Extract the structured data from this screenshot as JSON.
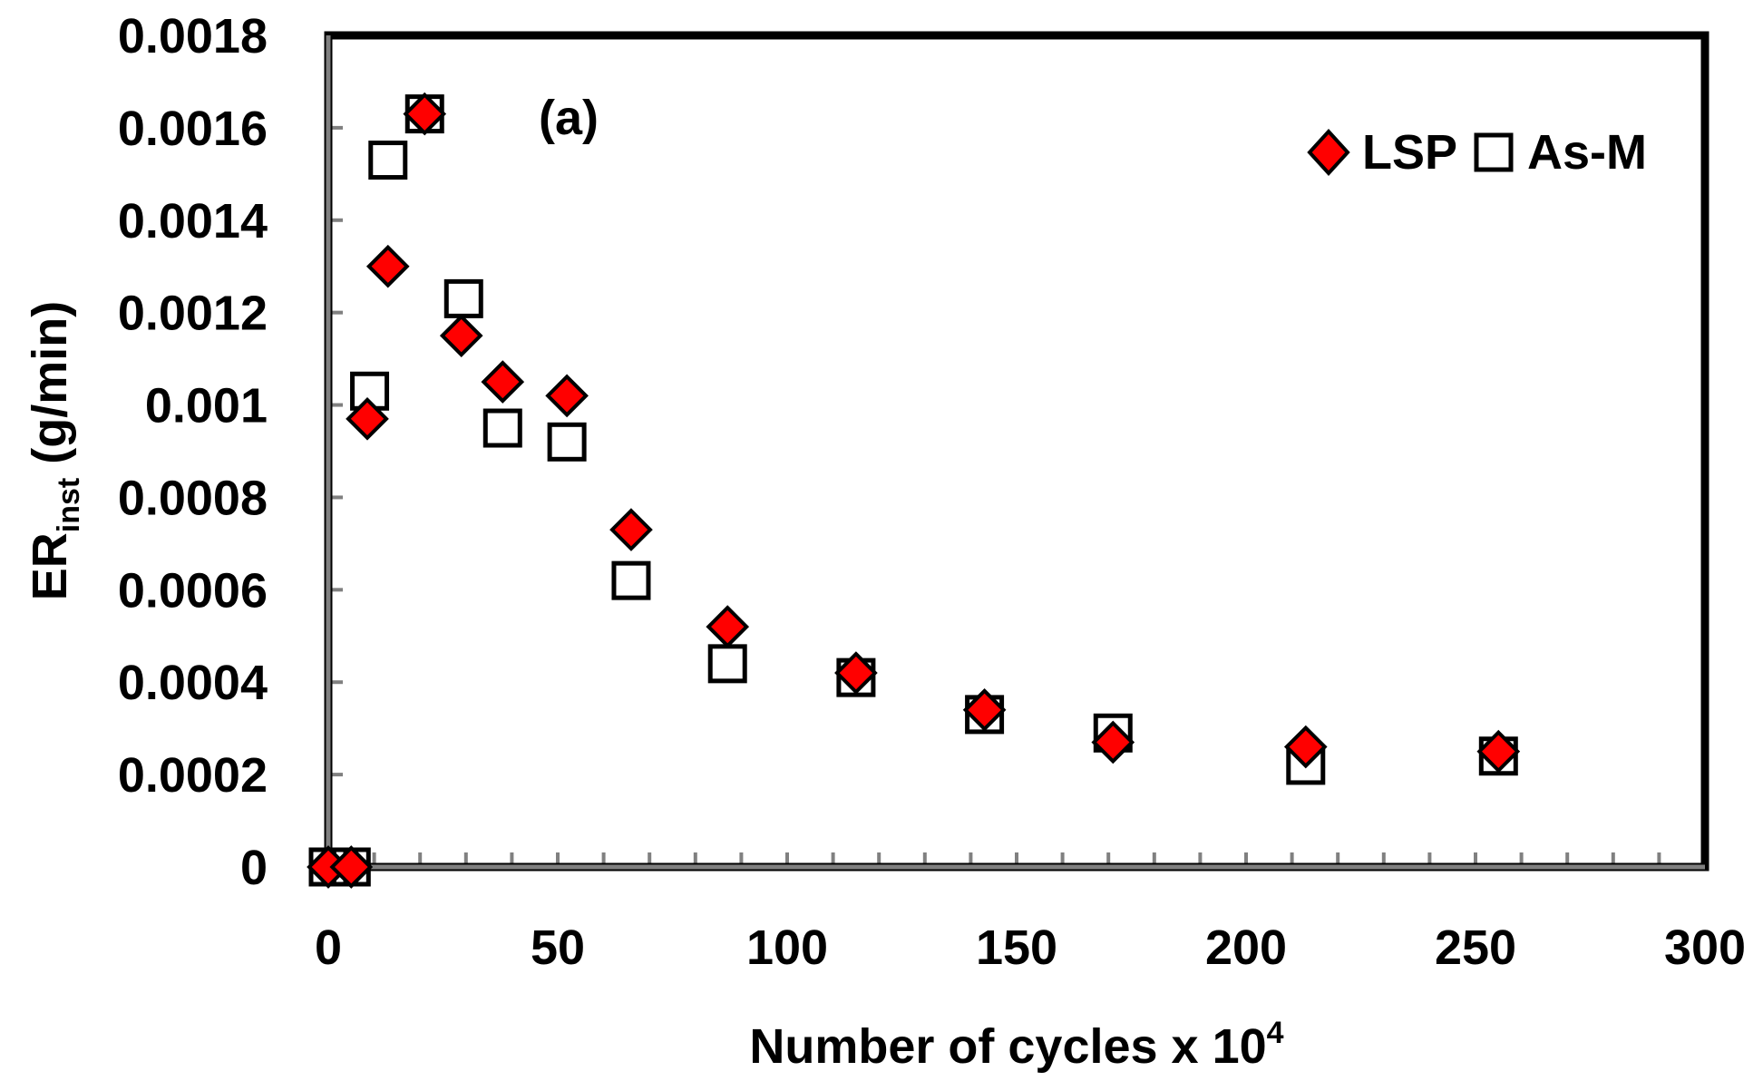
{
  "chart_data": {
    "type": "scatter",
    "panel_label": "(a)",
    "xlabel": "Number of cycles x 10",
    "xlabel_superscript": "4",
    "ylabel_main": "ER",
    "ylabel_subscript": "inst",
    "ylabel_unit": " (g/min)",
    "xlim": [
      0,
      300
    ],
    "ylim": [
      0,
      0.0018
    ],
    "x_ticks": [
      0,
      50,
      100,
      150,
      200,
      250,
      300
    ],
    "x_tick_labels": [
      "0",
      "50",
      "100",
      "150",
      "200",
      "250",
      "300"
    ],
    "x_minor_step": 10,
    "y_ticks": [
      0,
      0.0002,
      0.0004,
      0.0006,
      0.0008,
      0.001,
      0.0012,
      0.0014,
      0.0016,
      0.0018
    ],
    "y_tick_labels": [
      "0",
      "0.0002",
      "0.0004",
      "0.0006",
      "0.0008",
      "0.001",
      "0.0012",
      "0.0014",
      "0.0016",
      "0.0018"
    ],
    "grid": false,
    "legend_position": "top-right",
    "series": [
      {
        "name": "LSP",
        "marker": "diamond",
        "fill": "#ff0000",
        "stroke": "#000000",
        "points": [
          {
            "x": 0,
            "y": 0
          },
          {
            "x": 5,
            "y": 0
          },
          {
            "x": 8.5,
            "y": 0.00097
          },
          {
            "x": 13,
            "y": 0.0013
          },
          {
            "x": 21,
            "y": 0.00163
          },
          {
            "x": 29,
            "y": 0.00115
          },
          {
            "x": 38,
            "y": 0.00105
          },
          {
            "x": 52,
            "y": 0.00102
          },
          {
            "x": 66,
            "y": 0.00073
          },
          {
            "x": 87,
            "y": 0.00052
          },
          {
            "x": 115,
            "y": 0.00042
          },
          {
            "x": 143,
            "y": 0.00034
          },
          {
            "x": 171,
            "y": 0.00027
          },
          {
            "x": 213,
            "y": 0.00026
          },
          {
            "x": 255,
            "y": 0.00025
          }
        ]
      },
      {
        "name": "As-M",
        "marker": "square",
        "fill": "none",
        "stroke": "#000000",
        "points": [
          {
            "x": 0,
            "y": 0
          },
          {
            "x": 5,
            "y": 0
          },
          {
            "x": 9,
            "y": 0.00103
          },
          {
            "x": 13,
            "y": 0.00153
          },
          {
            "x": 21,
            "y": 0.00163
          },
          {
            "x": 29.5,
            "y": 0.00123
          },
          {
            "x": 38,
            "y": 0.00095
          },
          {
            "x": 52,
            "y": 0.00092
          },
          {
            "x": 66,
            "y": 0.00062
          },
          {
            "x": 87,
            "y": 0.00044
          },
          {
            "x": 115,
            "y": 0.00041
          },
          {
            "x": 143,
            "y": 0.00033
          },
          {
            "x": 171,
            "y": 0.00029
          },
          {
            "x": 213,
            "y": 0.00022
          },
          {
            "x": 255,
            "y": 0.00024
          }
        ]
      }
    ]
  }
}
